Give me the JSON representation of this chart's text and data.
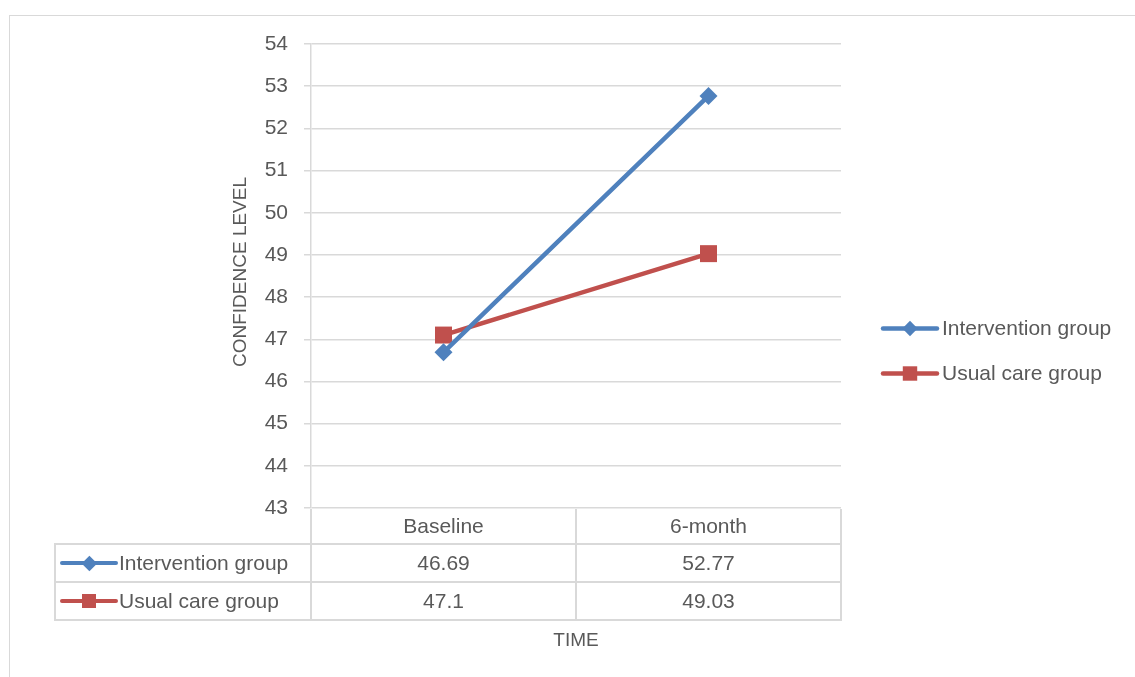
{
  "chart_data": {
    "type": "line",
    "xlabel": "TIME",
    "ylabel": "CONFIDENCE LEVEL",
    "categories": [
      "Baseline",
      "6-month"
    ],
    "series": [
      {
        "name": "Intervention group",
        "color": "#4f81bd",
        "marker": "diamond",
        "values": [
          46.69,
          52.77
        ]
      },
      {
        "name": "Usual care group",
        "color": "#c0504d",
        "marker": "square",
        "values": [
          47.1,
          49.03
        ]
      }
    ],
    "ylim": [
      43,
      54
    ],
    "yticks": [
      43,
      44,
      45,
      46,
      47,
      48,
      49,
      50,
      51,
      52,
      53,
      54
    ],
    "grid": "y",
    "legend": "right",
    "data_labels": true
  }
}
